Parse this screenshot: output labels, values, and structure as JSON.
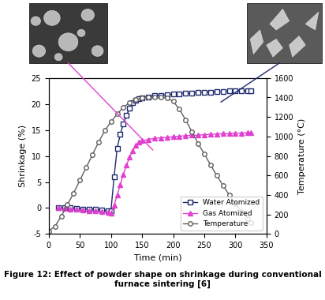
{
  "chart_data": {
    "type": "line",
    "caption": "Figure 12: Effect of powder shape on shrinkage during conventional furnace sintering [6]",
    "x_label": "Time (min)",
    "y_label": "Shrinkage (%)",
    "y2_label": "Temperature (°C)",
    "xlim": [
      0,
      350
    ],
    "xticks": [
      0,
      50,
      100,
      150,
      200,
      250,
      300,
      350
    ],
    "ylim": [
      -5,
      25
    ],
    "yticks": [
      -5,
      0,
      5,
      10,
      15,
      20,
      25
    ],
    "y2lim": [
      0,
      1600
    ],
    "y2ticks": [
      0,
      200,
      400,
      600,
      800,
      1000,
      1200,
      1400,
      1600
    ],
    "grid": false,
    "legend": "lower right",
    "series": [
      {
        "name": "Water Atomized",
        "color": "#1f2a6e",
        "marker": "square",
        "axis": "y",
        "x": [
          15,
          25,
          35,
          45,
          55,
          65,
          75,
          85,
          95,
          100,
          105,
          110,
          115,
          120,
          125,
          130,
          135,
          140,
          145,
          150,
          160,
          170,
          180,
          190,
          200,
          210,
          220,
          230,
          240,
          250,
          260,
          270,
          280,
          290,
          300,
          310,
          320,
          325
        ],
        "values": [
          0,
          0,
          0,
          -0.1,
          -0.2,
          -0.2,
          -0.3,
          -0.4,
          -0.5,
          -0.5,
          6,
          11.5,
          14.2,
          16.2,
          17.8,
          19.2,
          20.2,
          20.7,
          21,
          21.2,
          21.4,
          21.6,
          21.7,
          21.8,
          21.9,
          22,
          22.1,
          22.1,
          22.2,
          22.3,
          22.3,
          22.4,
          22.4,
          22.5,
          22.5,
          22.5,
          22.6,
          22.6
        ]
      },
      {
        "name": "Gas Atomized",
        "color": "#e040d0",
        "marker": "triangle",
        "axis": "y",
        "x": [
          15,
          25,
          35,
          45,
          55,
          65,
          75,
          85,
          95,
          100,
          105,
          110,
          115,
          120,
          125,
          130,
          135,
          140,
          145,
          150,
          160,
          170,
          180,
          190,
          200,
          210,
          220,
          230,
          240,
          250,
          260,
          270,
          280,
          290,
          300,
          310,
          320,
          325
        ],
        "values": [
          0,
          -0.1,
          -0.2,
          -0.3,
          -0.4,
          -0.5,
          -0.6,
          -0.7,
          -0.9,
          -1.0,
          0.5,
          2.5,
          4.5,
          6.5,
          8.2,
          9.8,
          11,
          12,
          12.6,
          12.9,
          13.2,
          13.4,
          13.5,
          13.6,
          13.7,
          13.8,
          13.9,
          14,
          14,
          14.1,
          14.2,
          14.2,
          14.3,
          14.3,
          14.4,
          14.4,
          14.5,
          14.5
        ]
      },
      {
        "name": "Temperature",
        "color": "#606060",
        "marker": "circle",
        "axis": "y2",
        "x": [
          0,
          10,
          20,
          30,
          40,
          50,
          60,
          70,
          80,
          90,
          100,
          110,
          120,
          130,
          140,
          150,
          160,
          170,
          180,
          190,
          200,
          210,
          220,
          230,
          240,
          250,
          260,
          270,
          280,
          290,
          300,
          310,
          320,
          325
        ],
        "values": [
          30,
          80,
          180,
          300,
          420,
          550,
          680,
          810,
          940,
          1060,
          1150,
          1230,
          1300,
          1350,
          1380,
          1395,
          1400,
          1400,
          1400,
          1395,
          1360,
          1280,
          1170,
          1050,
          930,
          820,
          710,
          600,
          500,
          400,
          310,
          230,
          160,
          120
        ]
      }
    ]
  }
}
